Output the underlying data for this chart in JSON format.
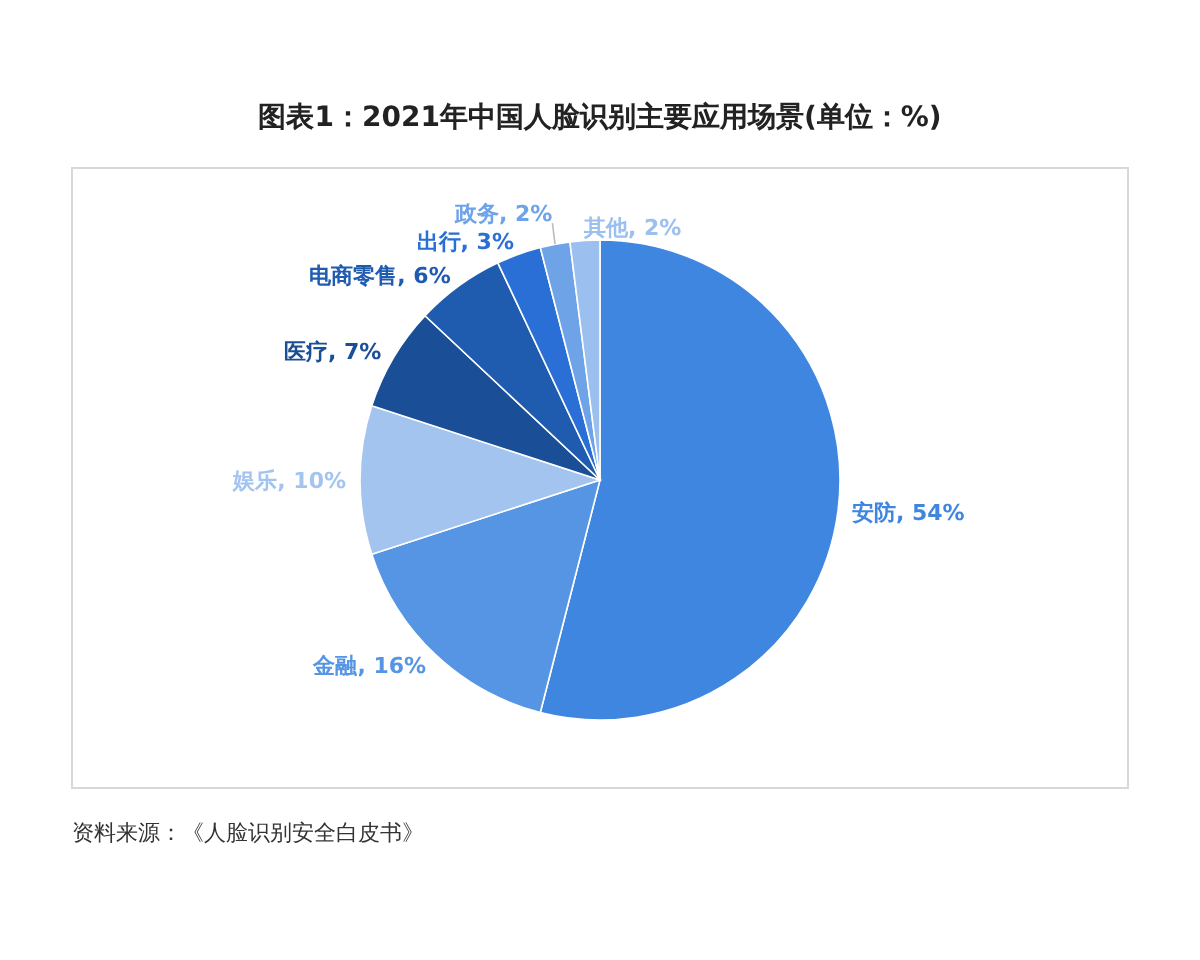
{
  "chart_data": {
    "type": "pie",
    "title": "图表1：2021年中国人脸识别主要应用场景(单位：%)",
    "categories": [
      "安防",
      "金融",
      "娱乐",
      "医疗",
      "电商零售",
      "出行",
      "政务",
      "其他"
    ],
    "values": [
      54,
      16,
      10,
      7,
      6,
      3,
      2,
      2
    ],
    "colors": [
      "#3f86e0",
      "#5595e3",
      "#a3c4ef",
      "#1a4f98",
      "#1f5cb0",
      "#2a6fd6",
      "#6fa3e8",
      "#9bbfef"
    ],
    "data_labels": true,
    "value_labels": [
      "54%",
      "16%",
      "10%",
      "7%",
      "6%",
      "3%",
      "2%",
      "2%"
    ],
    "annotations": [
      "资料来源：《人脸识别安全白皮书》"
    ]
  }
}
